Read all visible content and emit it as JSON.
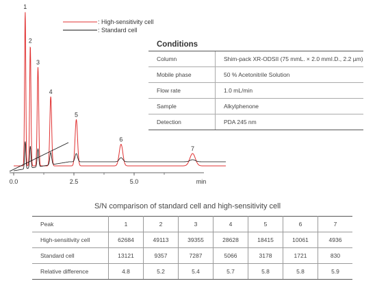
{
  "chart_data": {
    "type": "line",
    "xlabel": "min",
    "x_ticks": [
      "0.0",
      "2.5",
      "5.0"
    ],
    "xlim": [
      0,
      8.3
    ],
    "legend": [
      {
        "name": ": High-sensitivity cell",
        "color": "#e03030"
      },
      {
        "name": ": Standard cell",
        "color": "#111111"
      }
    ],
    "peaks": [
      {
        "label": "1",
        "rt": 0.45,
        "hs": 1.0,
        "std": 0.2
      },
      {
        "label": "2",
        "rt": 0.65,
        "hs": 0.78,
        "std": 0.16
      },
      {
        "label": "3",
        "rt": 0.95,
        "hs": 0.64,
        "std": 0.13
      },
      {
        "label": "4",
        "rt": 1.45,
        "hs": 0.45,
        "std": 0.09
      },
      {
        "label": "5",
        "rt": 2.45,
        "hs": 0.3,
        "std": 0.06
      },
      {
        "label": "6",
        "rt": 4.2,
        "hs": 0.14,
        "std": 0.03
      },
      {
        "label": "7",
        "rt": 7.0,
        "hs": 0.08,
        "std": 0.015
      }
    ]
  },
  "conditions": {
    "title": "Conditions",
    "rows": [
      {
        "key": "Column",
        "value": "Shim-pack XR-ODSII (75 mmL. × 2.0 mmI.D., 2.2 µm)"
      },
      {
        "key": "Mobile phase",
        "value": "50 % Acetonitrile Solution"
      },
      {
        "key": "Flow rate",
        "value": "1.0 mL/min"
      },
      {
        "key": "Sample",
        "value": "Alkylphenone"
      },
      {
        "key": "Detection",
        "value": "PDA 245 nm"
      }
    ]
  },
  "sn_table": {
    "title": "S/N comparison of standard cell and high-sensitivity cell",
    "header": "Peak",
    "peaks": [
      "1",
      "2",
      "3",
      "4",
      "5",
      "6",
      "7"
    ],
    "rows": [
      {
        "label": "High-sensitivity cell",
        "values": [
          "62684",
          "49113",
          "39355",
          "28628",
          "18415",
          "10061",
          "4936"
        ]
      },
      {
        "label": "Standard cell",
        "values": [
          "13121",
          "9357",
          "7287",
          "5066",
          "3178",
          "1721",
          "830"
        ]
      },
      {
        "label": "Relative difference",
        "values": [
          "4.8",
          "5.2",
          "5.4",
          "5.7",
          "5.8",
          "5.8",
          "5.9"
        ]
      }
    ]
  }
}
